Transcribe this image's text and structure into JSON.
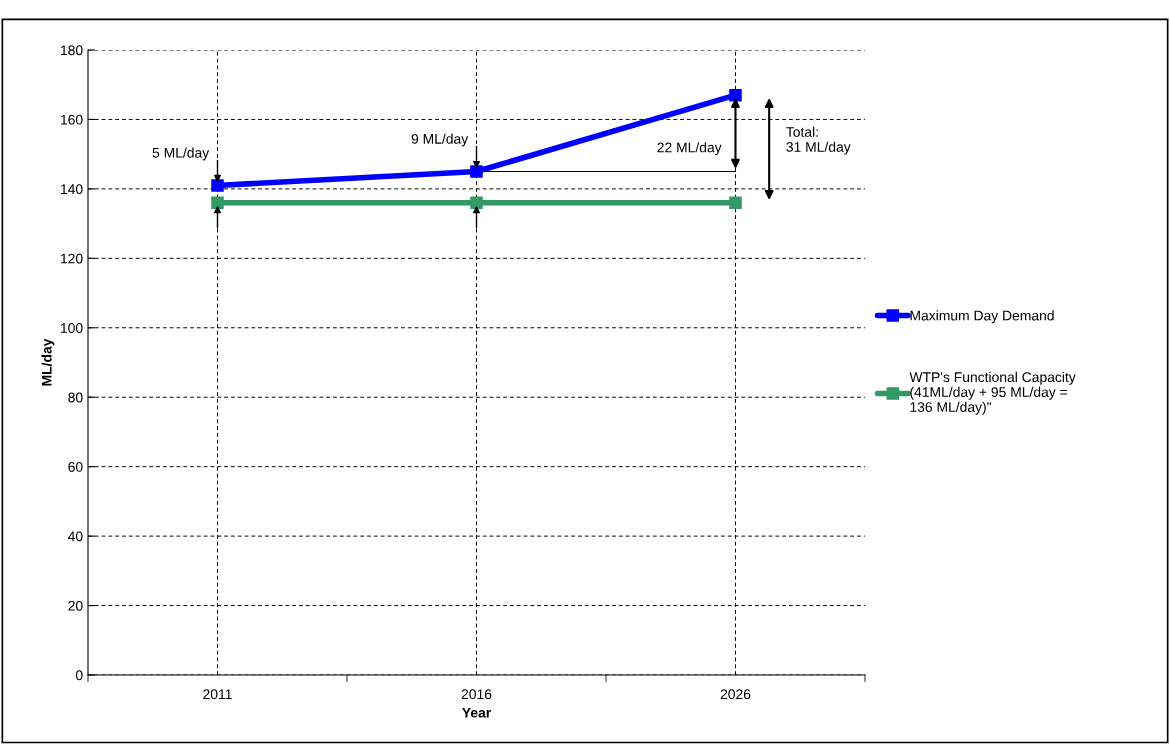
{
  "chart_data": {
    "type": "line",
    "xlabel": "Year",
    "ylabel": "ML/day",
    "categories": [
      "2011",
      "2016",
      "2026"
    ],
    "series": [
      {
        "name": "Maximum Day Demand",
        "color": "#0000ff",
        "values": [
          141,
          145,
          167
        ]
      },
      {
        "name": "WTP's Functional Capacity\n(41ML/day + 95 ML/day =\n136 ML/day)\"",
        "color": "#339966",
        "values": [
          136,
          136,
          136
        ]
      }
    ],
    "ylim": [
      0,
      180
    ],
    "yticks": [
      0,
      20,
      40,
      60,
      80,
      100,
      120,
      140,
      160,
      180
    ],
    "grid": true,
    "legend": "right",
    "marker": "square",
    "line_style": "solid",
    "annotations": [
      {
        "text": "5 ML/day",
        "x": "2011",
        "y": 141
      },
      {
        "text": "9 ML/day",
        "x": "2016",
        "y": 145
      },
      {
        "text": "22 ML/day",
        "x": "2026",
        "y": 167
      },
      "Total:\n31 ML/day"
    ]
  }
}
